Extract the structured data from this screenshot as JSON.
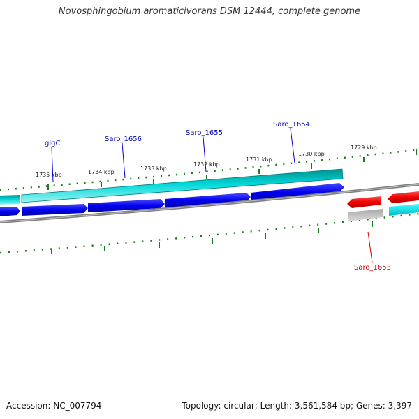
{
  "title": "Novosphingobium aromaticivorans DSM 12444, complete genome",
  "footer": {
    "accession": "Accession: NC_007794",
    "summary": "Topology: circular; Length: 3,561,584 bp; Genes: 3,397"
  },
  "scale_labels": [
    "1735 kbp",
    "1734 kbp",
    "1733 kbp",
    "1732 kbp",
    "1731 kbp",
    "1730 kbp",
    "1729 kbp"
  ],
  "gene_labels": [
    {
      "name": "glgC",
      "color": "#0000aa"
    },
    {
      "name": "Saro_1656",
      "color": "#0000aa"
    },
    {
      "name": "Saro_1655",
      "color": "#0000aa"
    },
    {
      "name": "Saro_1654",
      "color": "#0000aa"
    },
    {
      "name": "Saro_1653",
      "color": "#cc0000"
    }
  ],
  "colors": {
    "forward_gene": "#0000ee",
    "reverse_gene": "#ee0000",
    "cds_feature": "#00cccc",
    "tick": "#1e7a1e",
    "backbone": "#808080"
  }
}
